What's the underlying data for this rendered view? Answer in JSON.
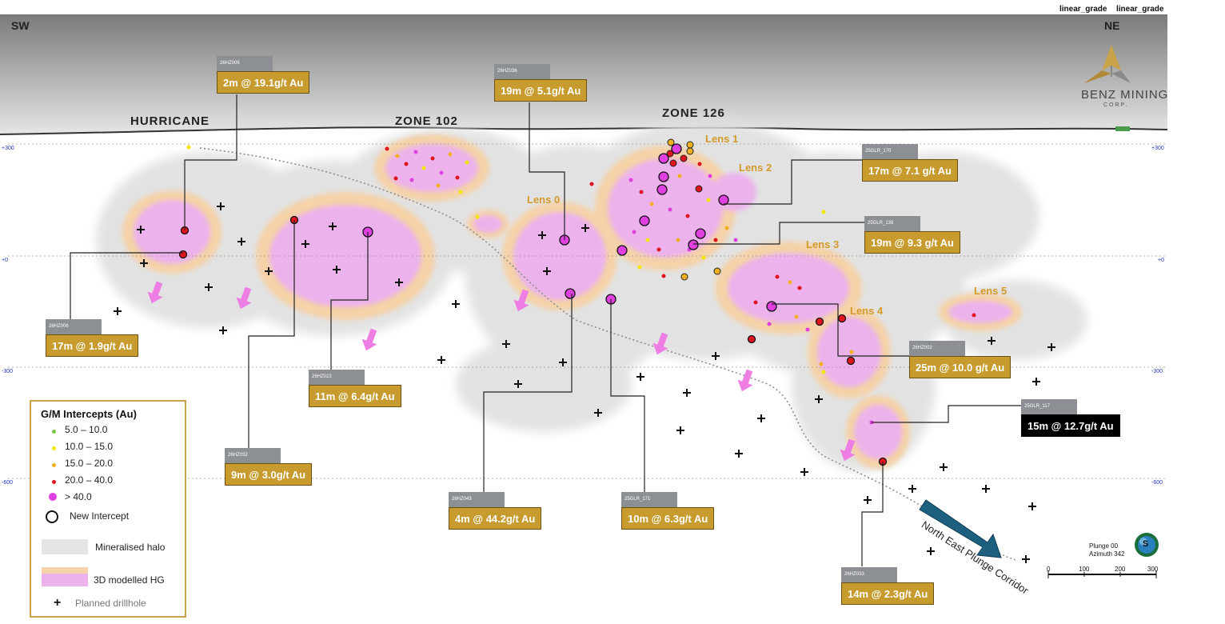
{
  "header": {
    "right_labels": [
      "linear_grade",
      "linear_grade"
    ]
  },
  "directions": {
    "left": "SW",
    "right": "NE"
  },
  "logo": {
    "name": "BENZ MINING",
    "sub": "CORP."
  },
  "zones": [
    "HURRICANE",
    "ZONE 102",
    "ZONE 126"
  ],
  "lenses": [
    "Lens 0",
    "Lens 1",
    "Lens 2",
    "Lens 3",
    "Lens 4",
    "Lens 5"
  ],
  "elevations": [
    "+300",
    "+0",
    "-300",
    "-600"
  ],
  "intercepts": [
    {
      "hole": "26HZ006",
      "value": "2m @ 19.1g/t Au"
    },
    {
      "hole": "26HZ006",
      "value": "17m @ 1.9g/t Au"
    },
    {
      "hole": "26HZ036",
      "value": "19m @ 5.1g/t Au"
    },
    {
      "hole": "26HZ023",
      "value": "11m @ 6.4g/t Au"
    },
    {
      "hole": "26HZ032",
      "value": "9m @ 3.0g/t Au"
    },
    {
      "hole": "26HZ043",
      "value": "4m @ 44.2g/t Au"
    },
    {
      "hole": "25GLR_171",
      "value": "10m @ 6.3g/t Au"
    },
    {
      "hole": "25GLR_170",
      "value": "17m @ 7.1 g/t Au"
    },
    {
      "hole": "25GLR_138",
      "value": "19m @ 9.3 g/t Au"
    },
    {
      "hole": "26HZ002",
      "value": "25m @ 10.0 g/t Au"
    },
    {
      "hole": "25GLR_117",
      "value": "15m @ 12.7g/t Au"
    },
    {
      "hole": "26HZ033",
      "value": "14m @ 2.3g/t Au"
    }
  ],
  "legend": {
    "title": "G/M Intercepts (Au)",
    "grades": [
      {
        "label": "5.0 – 10.0",
        "color": "#7cc242"
      },
      {
        "label": "10.0 – 15.0",
        "color": "#f2e600"
      },
      {
        "label": "15.0 – 20.0",
        "color": "#f0b020"
      },
      {
        "label": "20.0 – 40.0",
        "color": "#e0141e"
      },
      {
        "label": "> 40.0",
        "color": "#e040e0"
      }
    ],
    "new_intercept": "New Intercept",
    "halo": "Mineralised halo",
    "hg": "3D modelled HG",
    "planned": "Planned drillhole"
  },
  "plunge_corridor": "North East Plunge Corridor",
  "compass": {
    "letter": "S",
    "plunge": "Plunge 00",
    "azimuth": "Azimuth 342"
  },
  "scale_bar": [
    "0",
    "100",
    "200",
    "300"
  ]
}
